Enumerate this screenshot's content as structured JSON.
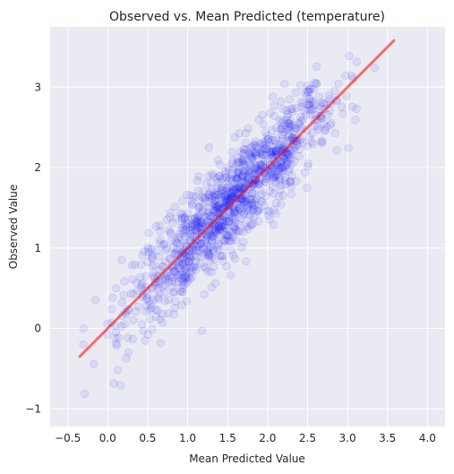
{
  "chart_data": {
    "type": "scatter",
    "title": "Observed vs. Mean Predicted (temperature)",
    "xlabel": "Mean Predicted Value",
    "ylabel": "Observed Value",
    "xlim": [
      -0.72,
      4.22
    ],
    "ylim": [
      -1.22,
      3.75
    ],
    "xticks": [
      -0.5,
      0.0,
      0.5,
      1.0,
      1.5,
      2.0,
      2.5,
      3.0,
      3.5,
      4.0
    ],
    "xtick_labels": [
      "−0.5",
      "0.0",
      "0.5",
      "1.0",
      "1.5",
      "2.0",
      "2.5",
      "3.0",
      "3.5",
      "4.0"
    ],
    "yticks": [
      -1,
      0,
      1,
      2,
      3
    ],
    "ytick_labels": [
      "−1",
      "0",
      "1",
      "2",
      "3"
    ],
    "grid": true,
    "background_color": "#eaeaf2",
    "scatter_color": "#0000ff",
    "scatter_alpha": 0.07,
    "scatter_count": 1200,
    "scatter_distribution": {
      "x_center": 1.55,
      "x_std": 0.65,
      "x_min": -0.35,
      "x_max": 3.58,
      "y_relation": "y ≈ x",
      "y_noise_std": 0.3
    },
    "series": [
      {
        "type": "line",
        "color": "#ff0000",
        "x": [
          -0.35,
          3.58
        ],
        "y": [
          -0.35,
          3.58
        ]
      }
    ]
  }
}
